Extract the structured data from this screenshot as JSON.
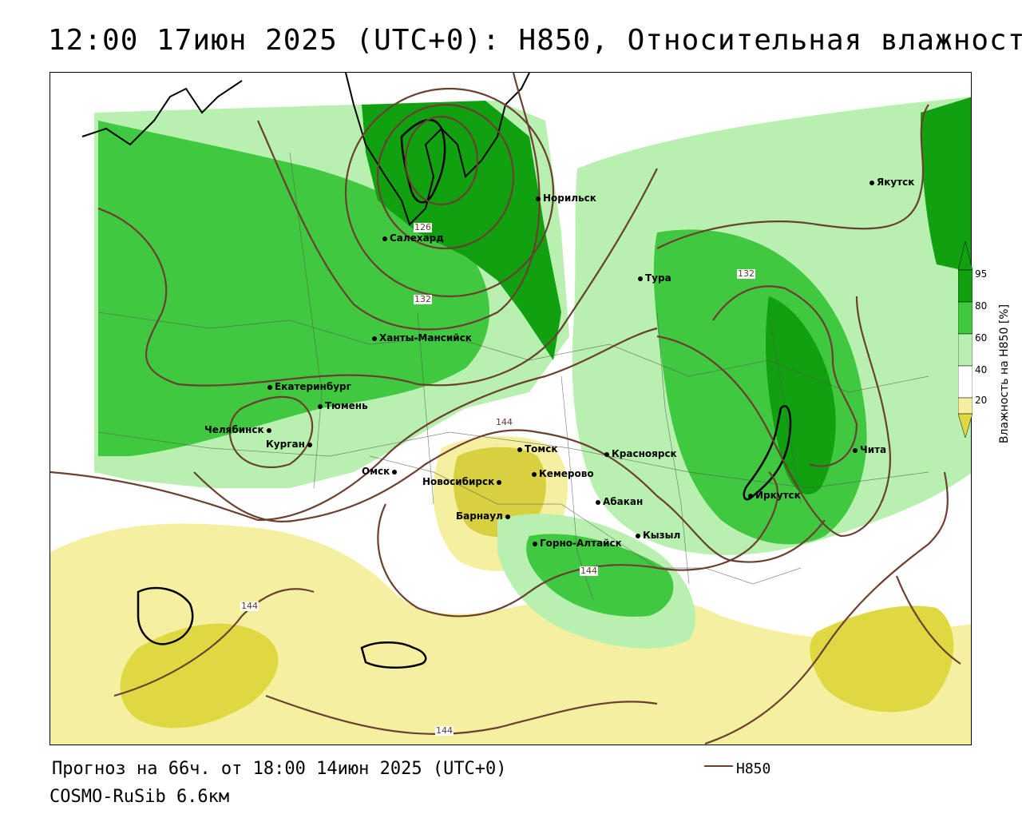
{
  "title": "12:00 17июн 2025 (UTC+0): H850, Относительная влажность",
  "footer": {
    "forecast": "Прогноз на 66ч. от 18:00 14июн 2025 (UTC+0)",
    "model": "COSMO-RuSib 6.6км"
  },
  "legend": {
    "line_label": "H850",
    "line_color": "#6b4030"
  },
  "colorbar": {
    "title": "Влажность на H850 [%]",
    "ticks": [
      "95",
      "80",
      "60",
      "40",
      "20"
    ],
    "colors": {
      "very_dry": "#e0d840",
      "dry": "#f5f0a0",
      "neutral": "#ffffff",
      "moist": "#b8f0b0",
      "wet": "#40c840",
      "very_wet": "#10a010"
    }
  },
  "cities": [
    {
      "name": "Норильск"
    },
    {
      "name": "Якутск"
    },
    {
      "name": "Салехард"
    },
    {
      "name": "Тура"
    },
    {
      "name": "Ханты-Мансийск"
    },
    {
      "name": "Екатеринбург"
    },
    {
      "name": "Тюмень"
    },
    {
      "name": "Челябинск"
    },
    {
      "name": "Курган"
    },
    {
      "name": "Омск"
    },
    {
      "name": "Новосибирск"
    },
    {
      "name": "Томск"
    },
    {
      "name": "Кемерово"
    },
    {
      "name": "Красноярск"
    },
    {
      "name": "Барнаул"
    },
    {
      "name": "Абакан"
    },
    {
      "name": "Кызыл"
    },
    {
      "name": "Горно-Алтайск"
    },
    {
      "name": "Иркутск"
    },
    {
      "name": "Чита"
    }
  ],
  "contour_labels": [
    "126",
    "132",
    "132",
    "144",
    "144",
    "144",
    "144"
  ]
}
